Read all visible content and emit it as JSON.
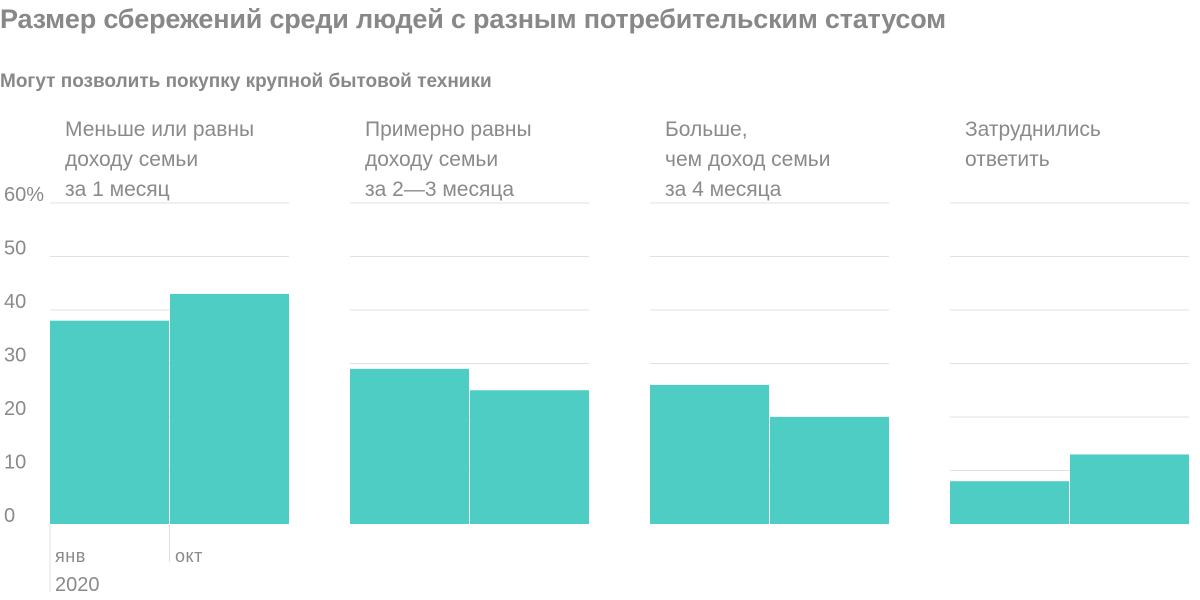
{
  "title": "Размер сбережений среди людей с разным потребительским статусом",
  "subtitle": "Могут позволить покупку крупной бытовой техники",
  "colors": {
    "bar": "#4ecdc4",
    "grid": "#e1e1e1",
    "text": "#8a8a8a"
  },
  "chart_data": {
    "type": "bar",
    "y_ticks": [
      "60%",
      "50",
      "40",
      "30",
      "20",
      "10",
      "0"
    ],
    "ylim": [
      0,
      60
    ],
    "categories": [
      "янв",
      "окт"
    ],
    "year_label": "2020",
    "panels": [
      {
        "title": [
          "Меньше или равны",
          "доходу семьи",
          "за 1 месяц"
        ],
        "values": [
          38,
          43
        ]
      },
      {
        "title": [
          "Примерно равны",
          "доходу семьи",
          "за 2—3 месяца"
        ],
        "values": [
          29,
          25
        ]
      },
      {
        "title": [
          "Больше,",
          "чем доход семьи",
          "за 4 месяца"
        ],
        "values": [
          26,
          20
        ]
      },
      {
        "title": [
          "Затруднились",
          "ответить"
        ],
        "values": [
          8,
          13
        ]
      }
    ]
  }
}
